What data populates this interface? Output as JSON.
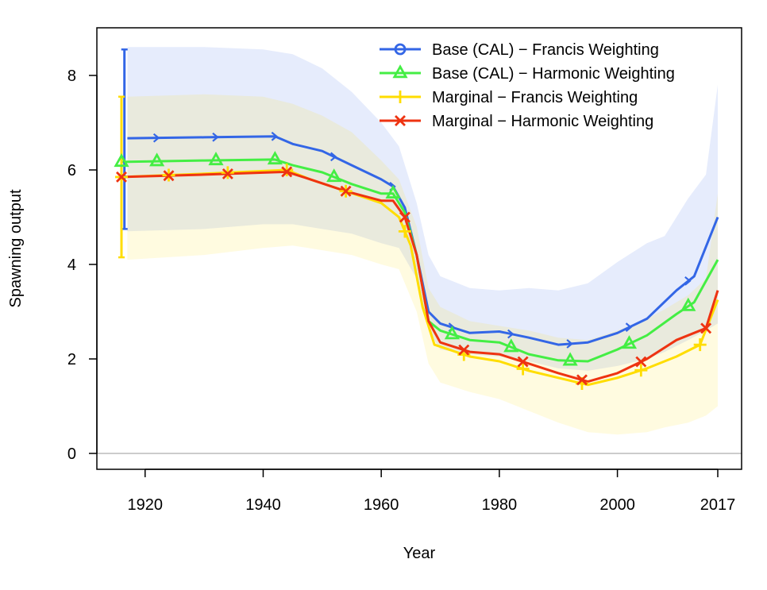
{
  "chart_data": {
    "type": "line",
    "xlabel": "Year",
    "ylabel": "Spawning output",
    "xlim": [
      1916,
      2017
    ],
    "ylim": [
      0,
      8.6
    ],
    "x_ticks": [
      1920,
      1940,
      1960,
      1980,
      2000,
      2017
    ],
    "x_tick_labels": [
      "1920",
      "1940",
      "1960",
      "1980",
      "2000",
      "2017"
    ],
    "y_ticks": [
      0,
      2,
      4,
      6,
      8
    ],
    "y_tick_labels": [
      "0",
      "2",
      "4",
      "6",
      "8"
    ],
    "reference_line_y": 0,
    "legend_position": "top-right",
    "grid": false,
    "series": [
      {
        "name": "Base (CAL) − Francis Weighting",
        "color": "#3366e6",
        "marker": "circle",
        "x": [
          1917,
          1930,
          1942,
          1945,
          1950,
          1955,
          1960,
          1962,
          1964,
          1966,
          1968,
          1970,
          1975,
          1980,
          1985,
          1990,
          1995,
          2000,
          2005,
          2010,
          2013,
          2017
        ],
        "y": [
          6.67,
          6.69,
          6.71,
          6.55,
          6.4,
          6.1,
          5.8,
          5.65,
          5.2,
          4.2,
          3.0,
          2.75,
          2.55,
          2.58,
          2.45,
          2.3,
          2.35,
          2.55,
          2.85,
          3.45,
          3.75,
          5.0
        ],
        "marker_years": [
          1922,
          1932,
          1942,
          1952,
          1962,
          1972,
          1982,
          1992,
          2002,
          2012
        ],
        "ci_first_year": [
          4.75,
          8.55
        ],
        "band_x": [
          1917,
          1930,
          1940,
          1945,
          1950,
          1955,
          1960,
          1963,
          1966,
          1968,
          1970,
          1975,
          1980,
          1985,
          1990,
          1995,
          2000,
          2005,
          2008,
          2012,
          2015,
          2017
        ],
        "band_low": [
          4.7,
          4.75,
          4.85,
          4.85,
          4.75,
          4.65,
          4.45,
          4.35,
          3.7,
          2.6,
          2.2,
          2.1,
          2.05,
          1.95,
          1.8,
          1.75,
          1.85,
          2.0,
          2.15,
          2.4,
          2.6,
          2.75
        ],
        "band_high": [
          8.6,
          8.6,
          8.55,
          8.45,
          8.15,
          7.65,
          7.0,
          6.5,
          5.3,
          4.2,
          3.75,
          3.5,
          3.45,
          3.5,
          3.45,
          3.6,
          4.05,
          4.45,
          4.6,
          5.4,
          5.9,
          7.8
        ]
      },
      {
        "name": "Base (CAL) − Harmonic Weighting",
        "color": "#44ee44",
        "marker": "triangle",
        "x": [
          1916,
          1930,
          1942,
          1945,
          1950,
          1955,
          1960,
          1962,
          1964,
          1966,
          1968,
          1970,
          1975,
          1980,
          1985,
          1990,
          1995,
          2000,
          2005,
          2010,
          2013,
          2017
        ],
        "y": [
          6.17,
          6.2,
          6.22,
          6.1,
          5.95,
          5.7,
          5.5,
          5.5,
          5.1,
          4.2,
          2.8,
          2.6,
          2.4,
          2.35,
          2.1,
          1.97,
          1.95,
          2.2,
          2.5,
          2.95,
          3.2,
          4.1
        ],
        "marker_years": [
          1916,
          1922,
          1932,
          1942,
          1952,
          1962,
          1972,
          1982,
          1992,
          2002,
          2012
        ]
      },
      {
        "name": "Marginal − Francis Weighting",
        "color": "#ffdd00",
        "marker": "plus",
        "x": [
          1916,
          1930,
          1944,
          1948,
          1954,
          1960,
          1963,
          1965,
          1967,
          1969,
          1975,
          1980,
          1985,
          1990,
          1995,
          2000,
          2005,
          2010,
          2014,
          2017
        ],
        "y": [
          5.85,
          5.92,
          6.0,
          5.8,
          5.55,
          5.3,
          5.0,
          4.4,
          3.1,
          2.3,
          2.05,
          1.95,
          1.75,
          1.6,
          1.45,
          1.6,
          1.8,
          2.05,
          2.3,
          3.25
        ],
        "marker_years": [
          1916,
          1924,
          1934,
          1944,
          1954,
          1964,
          1974,
          1984,
          1994,
          2004,
          2014
        ],
        "ci_first_year": [
          4.15,
          7.55
        ],
        "band_x": [
          1917,
          1930,
          1940,
          1945,
          1950,
          1955,
          1960,
          1963,
          1966,
          1968,
          1970,
          1975,
          1980,
          1985,
          1990,
          1995,
          2000,
          2005,
          2008,
          2012,
          2015,
          2017
        ],
        "band_low": [
          4.1,
          4.2,
          4.35,
          4.4,
          4.3,
          4.2,
          4.0,
          3.9,
          3.0,
          1.9,
          1.5,
          1.3,
          1.15,
          0.9,
          0.65,
          0.45,
          0.4,
          0.45,
          0.55,
          0.65,
          0.8,
          1.0
        ],
        "band_high": [
          7.55,
          7.6,
          7.55,
          7.4,
          7.15,
          6.8,
          6.2,
          5.8,
          4.8,
          3.5,
          3.1,
          2.8,
          2.7,
          2.6,
          2.45,
          2.4,
          2.6,
          2.85,
          3.05,
          3.35,
          3.7,
          5.5
        ]
      },
      {
        "name": "Marginal − Harmonic Weighting",
        "color": "#ee3311",
        "marker": "x",
        "x": [
          1916,
          1930,
          1944,
          1948,
          1954,
          1960,
          1962,
          1964,
          1966,
          1968,
          1970,
          1975,
          1980,
          1985,
          1990,
          1995,
          2000,
          2005,
          2010,
          2015,
          2017
        ],
        "y": [
          5.85,
          5.9,
          5.96,
          5.8,
          5.55,
          5.35,
          5.35,
          5.0,
          4.2,
          2.8,
          2.35,
          2.15,
          2.1,
          1.9,
          1.7,
          1.52,
          1.7,
          2.0,
          2.4,
          2.65,
          3.45
        ],
        "marker_years": [
          1916,
          1924,
          1934,
          1944,
          1954,
          1964,
          1974,
          1984,
          1994,
          2004,
          2015
        ]
      }
    ]
  }
}
